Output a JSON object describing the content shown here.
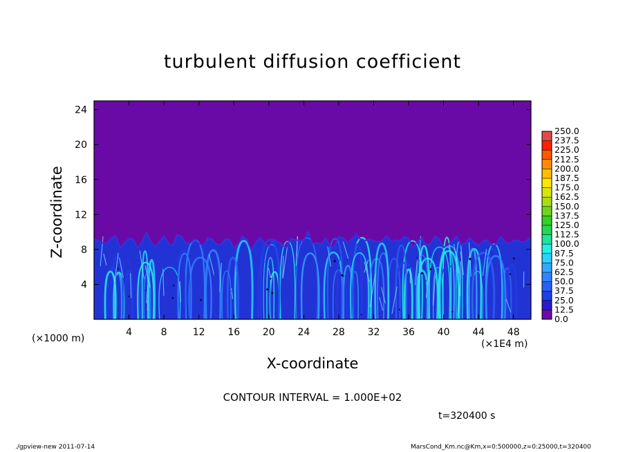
{
  "chart_data": {
    "type": "heatmap",
    "title": "turbulent diffusion coefficient",
    "xlabel": "X-coordinate",
    "ylabel": "Z-coordinate",
    "x_unit_label": "(×1E4 m)",
    "y_unit_label": "(×1000 m)",
    "x_ticks": [
      "4",
      "8",
      "12",
      "16",
      "20",
      "24",
      "28",
      "32",
      "36",
      "40",
      "44",
      "48"
    ],
    "y_ticks": [
      "4",
      "8",
      "12",
      "16",
      "20",
      "24"
    ],
    "xlim": [
      0,
      50
    ],
    "ylim": [
      0,
      25
    ],
    "grid": false,
    "colorbar": {
      "position": "right",
      "levels": [
        "0.0",
        "12.5",
        "25.0",
        "37.5",
        "50.0",
        "62.5",
        "75.0",
        "87.5",
        "100.0",
        "112.5",
        "125.0",
        "137.5",
        "150.0",
        "162.5",
        "175.0",
        "187.5",
        "200.0",
        "212.5",
        "225.0",
        "237.5",
        "250.0"
      ],
      "colors": [
        "#6a0aa6",
        "#2a1acc",
        "#1f3fe6",
        "#2a5ff5",
        "#2f85ff",
        "#34a8ff",
        "#28d2ff",
        "#22f0e6",
        "#22e39a",
        "#22d65a",
        "#36cf22",
        "#6fd41d",
        "#a7dd15",
        "#d6e60d",
        "#ffe600",
        "#ffbf00",
        "#ff8c00",
        "#ff5a00",
        "#ff2000",
        "#e34949"
      ]
    },
    "field_description": "value near 0 (purple) above about 9-10 km; turbulent values roughly 12.5-87.5 (blue/cyan) below about 9-10 km across the whole domain"
  },
  "contour_interval": "CONTOUR INTERVAL = 1.000E+02",
  "time_label": "t=320400 s",
  "footer": {
    "program": "./gpview-new   2011-07-14",
    "source": "MarsCond_Km.nc@Km,x=0:500000,z=0:25000,t=320400"
  },
  "colors": {
    "background_field": "#6a0aa6",
    "frame": "#000000"
  }
}
